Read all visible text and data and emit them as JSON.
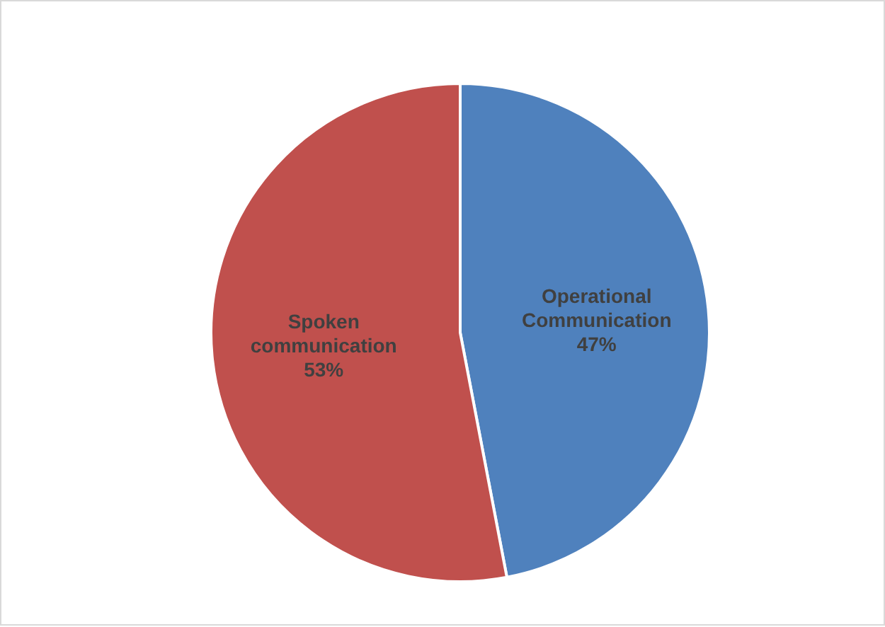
{
  "chart_data": {
    "type": "pie",
    "categories": [
      "Operational Communication",
      "Spoken communication"
    ],
    "values": [
      47,
      53
    ],
    "colors": [
      "#4f81bd",
      "#c0504d"
    ],
    "value_labels": [
      "47%",
      "53%"
    ],
    "legend": false
  }
}
